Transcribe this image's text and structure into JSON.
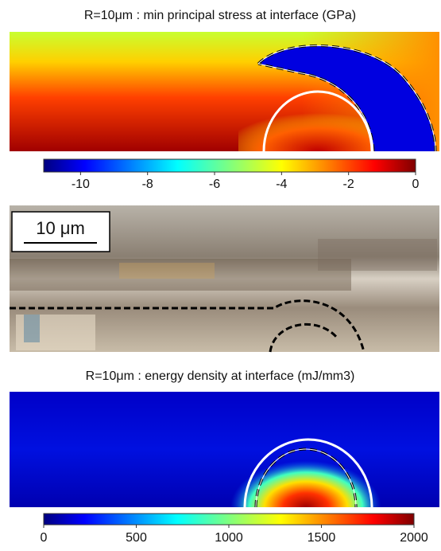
{
  "panels": [
    {
      "title": "R=10μm : min principal stress at interface (GPa)",
      "colorbar": {
        "lim": [
          -11.1,
          0
        ],
        "ticks": [
          -10,
          -8,
          -6,
          -4,
          -2,
          0
        ]
      }
    },
    {
      "scale_bar": "10 μm"
    },
    {
      "title": "R=10μm : energy density at interface (mJ/mm3)",
      "colorbar": {
        "lim": [
          0,
          2000
        ],
        "ticks": [
          0,
          500,
          1000,
          1500,
          2000
        ]
      }
    }
  ]
}
